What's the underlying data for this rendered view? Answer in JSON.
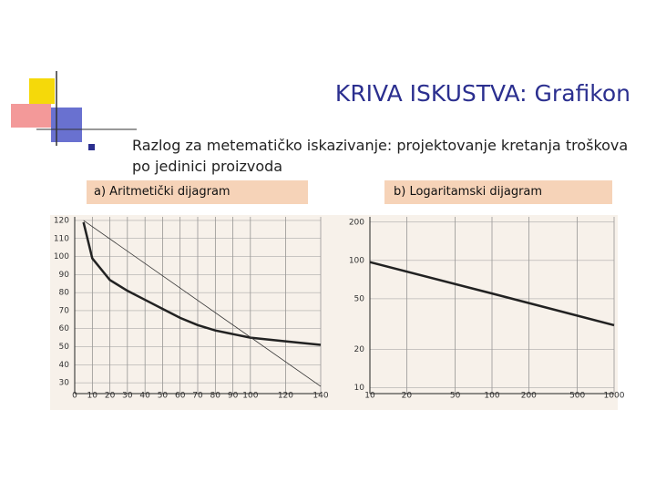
{
  "title": "KRIVA ISKUSTVA: Grafikon",
  "bullet": "Razlog za metematičko iskazivanje: projektovanje kretanja troškova po jedinici proizvoda",
  "chart_data": [
    {
      "type": "line",
      "title": "a) Aritmetički dijagram",
      "series": [
        {
          "color": "#222222",
          "x": [
            5,
            10,
            20,
            30,
            40,
            50,
            60,
            70,
            80,
            90,
            100,
            120,
            140
          ],
          "values": [
            119,
            99,
            87,
            81,
            76,
            71,
            66,
            62,
            59,
            57,
            55,
            53,
            51
          ]
        },
        {
          "color": "#333333",
          "x": [
            5,
            140
          ],
          "values": [
            120,
            28
          ]
        }
      ],
      "xlim": [
        0,
        140
      ],
      "ylim": [
        24,
        122
      ],
      "xticks": [
        0,
        10,
        20,
        30,
        40,
        50,
        60,
        70,
        80,
        90,
        100,
        120,
        140
      ],
      "yticks": [
        120,
        110,
        100,
        90,
        80,
        70,
        60,
        50,
        40,
        30
      ],
      "grid": true
    },
    {
      "type": "line",
      "title": "b) Logaritamski dijagram",
      "series": [
        {
          "color": "#222222",
          "x": [
            10,
            100,
            1000
          ],
          "values": [
            97,
            55,
            31
          ]
        }
      ],
      "xlim": [
        10,
        1000
      ],
      "ylim": [
        9,
        220
      ],
      "xscale": "log",
      "yscale": "log",
      "xticks": [
        10,
        20,
        50,
        100,
        200,
        500,
        1000
      ],
      "yticks": [
        200,
        100,
        50,
        20,
        10
      ],
      "grid": true
    }
  ]
}
